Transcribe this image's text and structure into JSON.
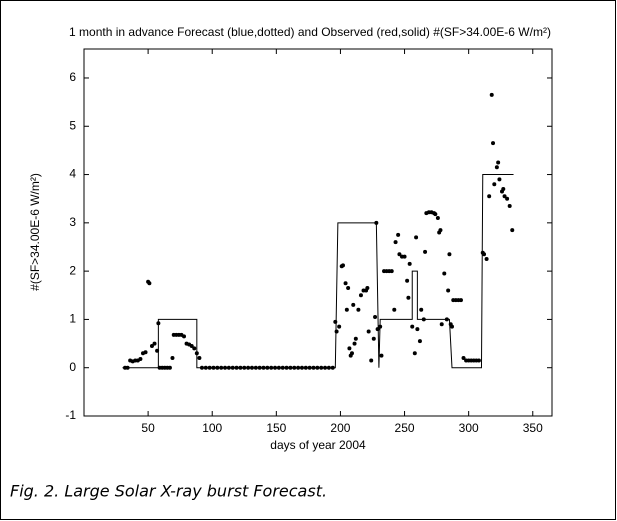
{
  "chart_data": {
    "type": "line",
    "title": "1 month in advance Forecast (blue,dotted) and Observed (red,solid) #(SF>34.00E-6 W/m²)",
    "x_label": "days of year 2004",
    "y_label": "#(SF>34.00E-6 W/m²)",
    "caption": "Fig. 2. Large Solar X-ray burst Forecast.",
    "xlim": [
      0,
      365
    ],
    "ylim": [
      -1,
      6.6
    ],
    "xticks": [
      50,
      100,
      150,
      200,
      250,
      300,
      350
    ],
    "yticks": [
      -1,
      0,
      1,
      2,
      3,
      4,
      5,
      6
    ],
    "series": [
      {
        "style": "dots",
        "color": "#000000",
        "x": [
          32,
          34,
          36,
          38,
          40,
          42,
          44,
          46,
          48,
          50,
          51,
          53,
          55,
          57,
          58,
          59,
          61,
          63,
          65,
          67,
          69,
          70,
          72,
          74,
          76,
          78,
          80,
          82,
          84,
          86,
          88,
          90,
          92,
          95,
          98,
          101,
          104,
          107,
          110,
          113,
          116,
          119,
          122,
          125,
          128,
          131,
          134,
          137,
          140,
          143,
          146,
          149,
          152,
          155,
          158,
          161,
          164,
          167,
          170,
          173,
          176,
          179,
          182,
          185,
          188,
          191,
          194,
          196,
          197,
          199,
          201,
          202,
          204,
          205,
          206,
          207,
          208,
          209,
          210,
          211,
          212,
          214,
          216,
          218,
          220,
          221,
          222,
          224,
          226,
          227,
          228,
          229,
          231,
          232,
          234,
          236,
          238,
          240,
          242,
          243,
          245,
          246,
          248,
          250,
          252,
          253,
          254,
          256,
          258,
          259,
          260,
          262,
          263,
          265,
          266,
          267,
          269,
          271,
          273,
          274,
          276,
          277,
          278,
          279,
          281,
          283,
          284,
          285,
          286,
          287,
          288,
          290,
          292,
          294,
          296,
          298,
          300,
          302,
          304,
          306,
          308,
          311,
          312,
          314,
          316,
          318,
          319,
          320,
          322,
          323,
          324,
          326,
          327,
          328,
          330,
          332,
          334
        ],
        "values": [
          0,
          0,
          0.15,
          0.13,
          0.15,
          0.15,
          0.18,
          0.3,
          0.32,
          1.78,
          1.75,
          0.45,
          0.5,
          0.35,
          0.92,
          0,
          0,
          0,
          0,
          0,
          0.2,
          0.68,
          0.68,
          0.68,
          0.68,
          0.65,
          0.5,
          0.48,
          0.45,
          0.4,
          0.3,
          0.2,
          0,
          0,
          0,
          0,
          0,
          0,
          0,
          0,
          0,
          0,
          0,
          0,
          0,
          0,
          0,
          0,
          0,
          0,
          0,
          0,
          0,
          0,
          0,
          0,
          0,
          0,
          0,
          0,
          0,
          0,
          0,
          0,
          0,
          0,
          0,
          0.95,
          0.75,
          0.85,
          2.1,
          2.12,
          1.75,
          1.2,
          1.65,
          0.4,
          0.25,
          0.3,
          1.3,
          0.5,
          0.6,
          1.2,
          1.5,
          1.6,
          1.6,
          1.65,
          0.75,
          0.15,
          0.6,
          1.05,
          3.0,
          0.8,
          0.85,
          0.25,
          2.0,
          2.0,
          2.0,
          2.0,
          1.2,
          2.6,
          2.75,
          2.35,
          2.3,
          2.3,
          1.8,
          1.45,
          2.15,
          0.85,
          0.3,
          2.7,
          0.8,
          0.55,
          1.2,
          1.0,
          2.4,
          3.2,
          3.22,
          3.22,
          3.2,
          3.18,
          3.1,
          2.8,
          2.85,
          0.9,
          1.95,
          1.0,
          1.6,
          2.35,
          0.9,
          0.85,
          1.4,
          1.4,
          1.4,
          1.4,
          0.2,
          0.15,
          0.15,
          0.15,
          0.15,
          0.15,
          0.15,
          2.38,
          2.35,
          2.25,
          3.55,
          5.65,
          4.65,
          3.8,
          4.15,
          4.25,
          3.9,
          3.65,
          3.7,
          3.55,
          3.5,
          3.35,
          2.85
        ]
      },
      {
        "style": "line",
        "color": "#000000",
        "x": [
          30,
          58,
          58,
          88,
          88,
          196,
          198,
          228,
          230,
          231,
          256,
          256,
          260,
          260,
          285,
          287,
          310,
          311,
          335
        ],
        "values": [
          0,
          0,
          1,
          1,
          0,
          0,
          3,
          3,
          0,
          1,
          1,
          2,
          2,
          1,
          1,
          0,
          0,
          4,
          4
        ]
      }
    ]
  }
}
